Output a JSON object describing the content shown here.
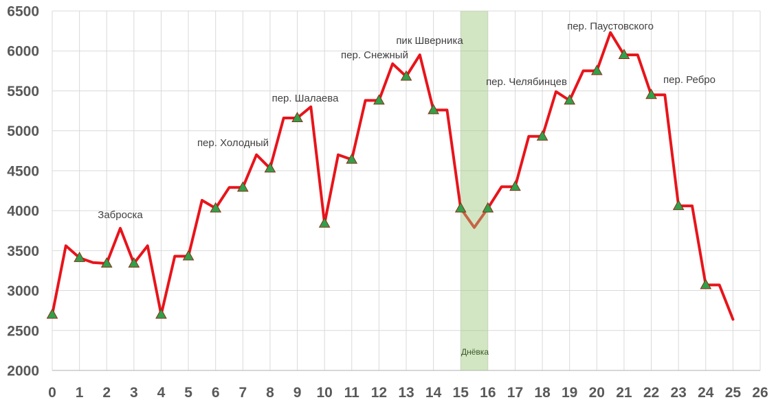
{
  "chart_data": {
    "type": "line",
    "title": "",
    "xlabel": "",
    "ylabel": "",
    "xlim": [
      0,
      26
    ],
    "ylim": [
      2000,
      6500
    ],
    "x_ticks": [
      "0",
      "1",
      "2",
      "3",
      "4",
      "5",
      "6",
      "7",
      "8",
      "9",
      "10",
      "11",
      "12",
      "13",
      "14",
      "15",
      "16",
      "17",
      "18",
      "19",
      "20",
      "21",
      "22",
      "23",
      "24",
      "25",
      "26"
    ],
    "y_ticks": [
      "2000",
      "2500",
      "3000",
      "3500",
      "4000",
      "4500",
      "5000",
      "5500",
      "6000",
      "6500"
    ],
    "grid": true,
    "legend": "none",
    "series": [
      {
        "x": [
          0,
          0.5,
          1,
          1.5,
          2,
          2.5,
          3,
          3.5,
          4,
          4.5,
          5,
          5.5,
          6,
          6.5,
          7,
          7.5,
          8,
          8.5,
          9,
          9.5,
          10,
          10.5,
          11,
          11.5,
          12,
          12.5,
          13,
          13.5,
          14,
          14.5,
          15,
          15.5,
          16,
          16.5,
          17,
          17.5,
          18,
          18.5,
          19,
          19.5,
          20,
          20.5,
          21,
          21.5,
          22,
          22.5,
          23,
          23.5,
          24,
          24.5,
          25
        ],
        "y": [
          2700,
          3560,
          3410,
          3350,
          3340,
          3780,
          3340,
          3560,
          2700,
          3430,
          3430,
          4130,
          4030,
          4290,
          4290,
          4700,
          4530,
          5160,
          5160,
          5300,
          3840,
          4700,
          4640,
          5380,
          5380,
          5840,
          5680,
          5950,
          5260,
          5260,
          4030,
          3790,
          4030,
          4300,
          4300,
          4930,
          4930,
          5490,
          5380,
          5750,
          5750,
          6230,
          5950,
          5950,
          5450,
          5450,
          4060,
          4060,
          3070,
          3070,
          2640
        ],
        "marker": "triangle",
        "marker_x": [
          0,
          1,
          2,
          3,
          4,
          5,
          6,
          7,
          8,
          9,
          10,
          11,
          12,
          13,
          14,
          15,
          16,
          17,
          18,
          19,
          20,
          21,
          22,
          23,
          24
        ]
      }
    ],
    "rest_day": {
      "label": "Днёвка",
      "x_start": 15,
      "x_end": 16
    },
    "annotations": [
      {
        "text": "Заброска"
      },
      {
        "text": "пер. Холодный"
      },
      {
        "text": "пер. Шалаева"
      },
      {
        "text": "пер. Снежный"
      },
      {
        "text": "пик Шверника"
      },
      {
        "text": "пер. Челябинцев"
      },
      {
        "text": "пер. Паустовского"
      },
      {
        "text": "пер. Ребро"
      }
    ],
    "colors": {
      "line": "#e8141b",
      "marker_fill": "#31a04a",
      "marker_edge": "#8a2e14",
      "rest_band": "#9bc87d",
      "rest_label": "#375623",
      "grid": "#d9d9d9",
      "axis": "#bfbfbf",
      "tick_label": "#595959",
      "annotation": "#404040"
    }
  }
}
